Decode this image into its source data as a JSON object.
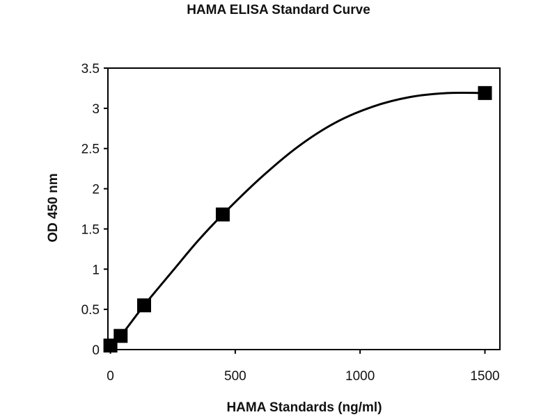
{
  "chart_data": {
    "type": "scatter",
    "title": "HAMA ELISA Standard Curve",
    "xlabel": "HAMA Standards (ng/ml)",
    "ylabel": "OD 450 nm",
    "xlim": [
      -10,
      1560
    ],
    "ylim": [
      0,
      3.5
    ],
    "xticks": [
      "0",
      "500",
      "1000",
      "1500"
    ],
    "yticks": [
      "0",
      "0.5",
      "1",
      "1.5",
      "2",
      "2.5",
      "3",
      "3.5"
    ],
    "grid": false,
    "legend": "none",
    "series": [
      {
        "marker": "square",
        "color": "#000000",
        "points": [
          {
            "x": 0,
            "y": 0.05
          },
          {
            "x": 41,
            "y": 0.17
          },
          {
            "x": 135,
            "y": 0.55
          },
          {
            "x": 450,
            "y": 1.68
          },
          {
            "x": 1500,
            "y": 3.19
          }
        ],
        "fit_curve": [
          {
            "x": 0,
            "y": 0.05
          },
          {
            "x": 41,
            "y": 0.17
          },
          {
            "x": 135,
            "y": 0.55
          },
          {
            "x": 250,
            "y": 0.98
          },
          {
            "x": 350,
            "y": 1.35
          },
          {
            "x": 450,
            "y": 1.68
          },
          {
            "x": 600,
            "y": 2.13
          },
          {
            "x": 750,
            "y": 2.52
          },
          {
            "x": 900,
            "y": 2.82
          },
          {
            "x": 1050,
            "y": 3.02
          },
          {
            "x": 1200,
            "y": 3.14
          },
          {
            "x": 1350,
            "y": 3.19
          },
          {
            "x": 1500,
            "y": 3.19
          }
        ]
      }
    ]
  }
}
